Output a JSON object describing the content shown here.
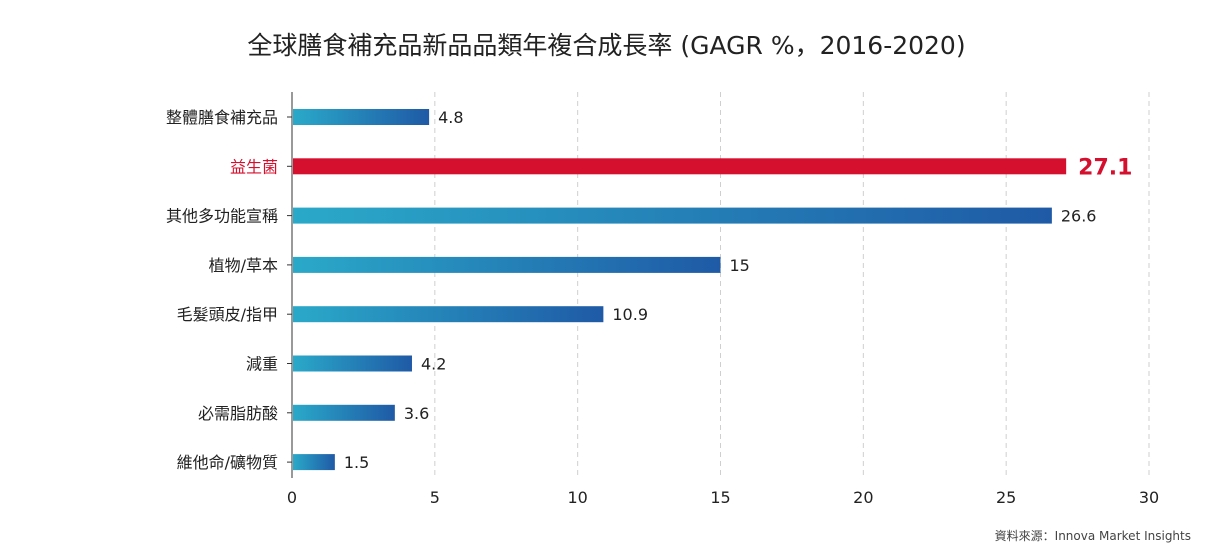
{
  "colors": {
    "bar_gradient_start": "#2aa9c9",
    "bar_gradient_end": "#1f5aa6",
    "highlight": "#d5102e",
    "grid": "#cfcfcf",
    "axis": "#333333",
    "text": "#222222"
  },
  "chart_data": {
    "type": "bar",
    "orientation": "horizontal",
    "title": "全球膳食補充品新品品類年複合成長率 (GAGR %，2016-2020)",
    "categories": [
      "整體膳食補充品",
      "益生菌",
      "其他多功能宣稱",
      "植物/草本",
      "毛髮頭皮/指甲",
      "減重",
      "必需脂肪酸",
      "維他命/礦物質"
    ],
    "values": [
      4.8,
      27.1,
      26.6,
      15,
      10.9,
      4.2,
      3.6,
      1.5
    ],
    "value_labels": [
      "4.8",
      "27.1",
      "26.6",
      "15",
      "10.9",
      "4.2",
      "3.6",
      "1.5"
    ],
    "highlight_index": 1,
    "xlim": [
      0,
      30
    ],
    "xticks": [
      0,
      5,
      10,
      15,
      20,
      25,
      30
    ],
    "xtick_labels": [
      "0",
      "5",
      "10",
      "15",
      "20",
      "25",
      "30"
    ],
    "grid": "vertical-dashed",
    "legend": "none"
  },
  "source": "資料來源：Innova Market Insights"
}
